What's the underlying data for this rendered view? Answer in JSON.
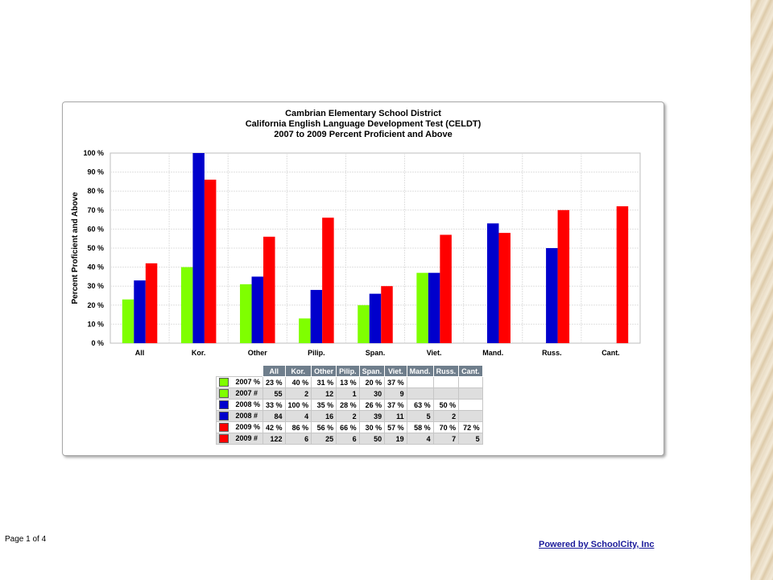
{
  "chart_data": {
    "type": "bar",
    "title": [
      "Cambrian Elementary School District",
      "California English Language Development Test (CELDT)",
      "2007 to 2009  Percent Proficient and Above"
    ],
    "ylabel": "Percent Proficient and Above",
    "xlabel": "",
    "ylim": [
      0,
      100
    ],
    "yticks": [
      "0 %",
      "10 %",
      "20 %",
      "30 %",
      "40 %",
      "50 %",
      "60 %",
      "70 %",
      "80 %",
      "90 %",
      "100 %"
    ],
    "categories": [
      "All",
      "Kor.",
      "Other",
      "Pilip.",
      "Span.",
      "Viet.",
      "Mand.",
      "Russ.",
      "Cant."
    ],
    "grid": true,
    "series": [
      {
        "name": "2007 %",
        "color": "#7fff00",
        "values": [
          23,
          40,
          31,
          13,
          20,
          37,
          null,
          null,
          null
        ]
      },
      {
        "name": "2008 %",
        "color": "#0000cc",
        "values": [
          33,
          100,
          35,
          28,
          26,
          37,
          63,
          50,
          null
        ]
      },
      {
        "name": "2009 %",
        "color": "#ff0000",
        "values": [
          42,
          86,
          56,
          66,
          30,
          57,
          58,
          70,
          72
        ]
      }
    ]
  },
  "table": {
    "headers": [
      "All",
      "Kor.",
      "Other",
      "Pilip.",
      "Span.",
      "Viet.",
      "Mand.",
      "Russ.",
      "Cant."
    ],
    "rows": [
      {
        "label": "2007 %",
        "color": "#7fff00",
        "shade": false,
        "cells": [
          "23 %",
          "40 %",
          "31 %",
          "13 %",
          "20 %",
          "37 %",
          "",
          "",
          ""
        ]
      },
      {
        "label": "2007 #",
        "color": "#7fff00",
        "shade": true,
        "cells": [
          "55",
          "2",
          "12",
          "1",
          "30",
          "9",
          "",
          "",
          ""
        ]
      },
      {
        "label": "2008 %",
        "color": "#0000cc",
        "shade": false,
        "cells": [
          "33 %",
          "100 %",
          "35 %",
          "28 %",
          "26 %",
          "37 %",
          "63 %",
          "50 %",
          ""
        ]
      },
      {
        "label": "2008 #",
        "color": "#0000cc",
        "shade": true,
        "cells": [
          "84",
          "4",
          "16",
          "2",
          "39",
          "11",
          "5",
          "2",
          ""
        ]
      },
      {
        "label": "2009 %",
        "color": "#ff0000",
        "shade": false,
        "cells": [
          "42 %",
          "86 %",
          "56 %",
          "66 %",
          "30 %",
          "57 %",
          "58 %",
          "70 %",
          "72 %"
        ]
      },
      {
        "label": "2009 #",
        "color": "#ff0000",
        "shade": true,
        "cells": [
          "122",
          "6",
          "25",
          "6",
          "50",
          "19",
          "4",
          "7",
          "5"
        ]
      }
    ]
  },
  "footer": {
    "page": "Page 1 of 4",
    "powered": "Powered by SchoolCity, Inc"
  }
}
